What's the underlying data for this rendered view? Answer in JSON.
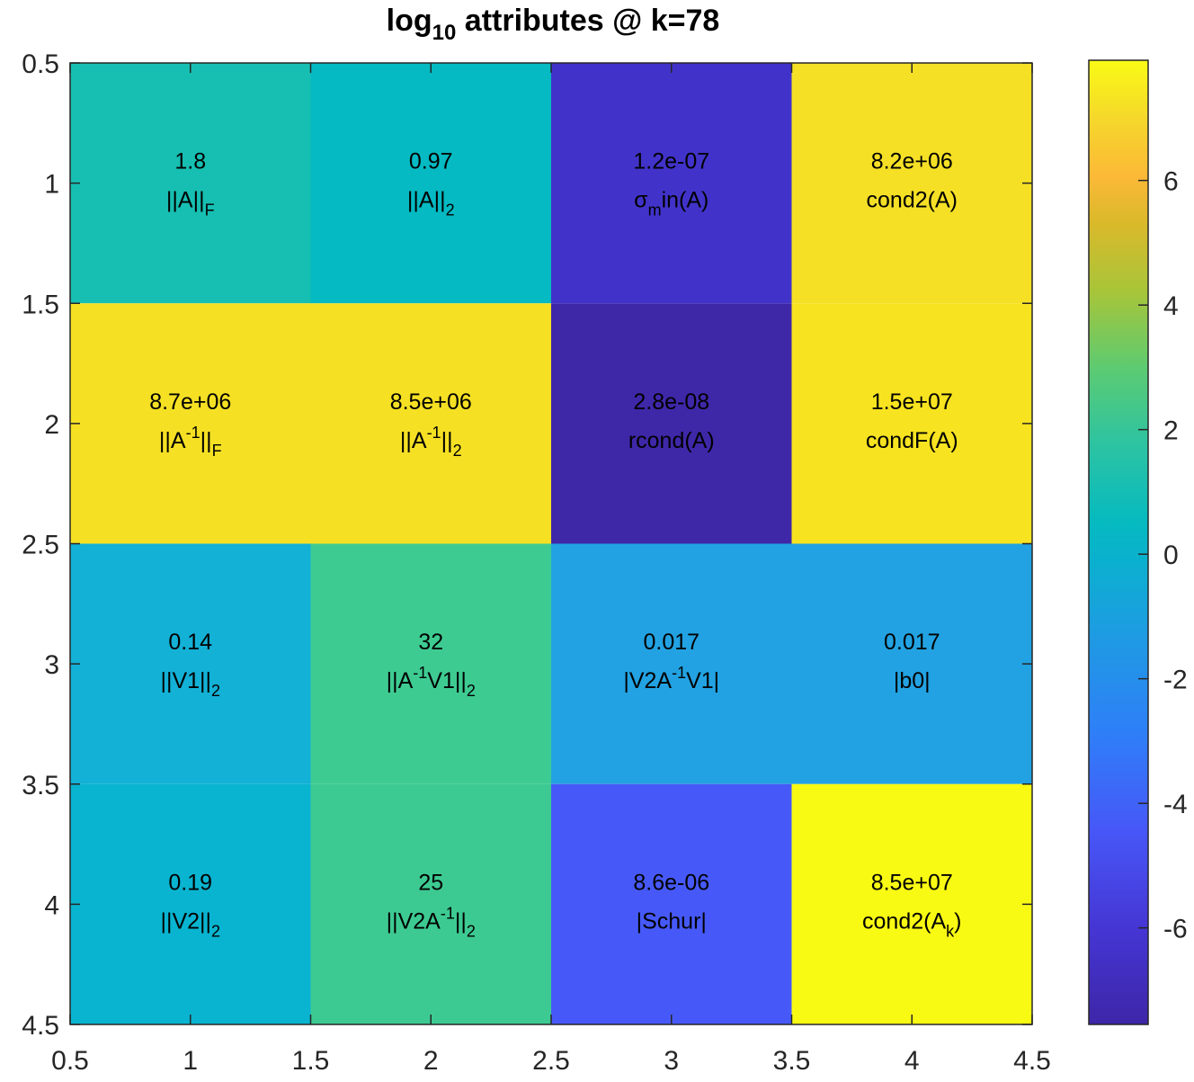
{
  "chart_data": {
    "type": "heatmap",
    "title": "log10 attributes @ k=78",
    "title_parts": {
      "main": "log",
      "sub": "10",
      "rest": " attributes @ k=78"
    },
    "xlabel": "",
    "ylabel": "",
    "xlim": [
      0.5,
      4.5
    ],
    "ylim": [
      0.5,
      4.5
    ],
    "y_reversed": true,
    "x_ticks": [
      "0.5",
      "1",
      "1.5",
      "2",
      "2.5",
      "3",
      "3.5",
      "4",
      "4.5"
    ],
    "y_ticks": [
      "0.5",
      "1",
      "1.5",
      "2",
      "2.5",
      "3",
      "3.5",
      "4",
      "4.5"
    ],
    "colorbar": {
      "ticks": [
        "6",
        "4",
        "2",
        "0",
        "-2",
        "-4",
        "-6"
      ],
      "clim": [
        -7.55,
        7.93
      ],
      "colormap": "parula"
    },
    "cells": [
      [
        {
          "value": 1.8,
          "log10": 0.26,
          "value_text": "1.8",
          "label": [
            {
              "t": "||A||"
            },
            {
              "t": "F",
              "sub": true
            }
          ]
        },
        {
          "value": 0.97,
          "log10": -0.01,
          "value_text": "0.97",
          "label": [
            {
              "t": "||A||"
            },
            {
              "t": "2",
              "sub": true
            }
          ]
        },
        {
          "value": 1.2e-07,
          "log10": -6.92,
          "value_text": "1.2e-07",
          "label": [
            {
              "t": "σ"
            },
            {
              "t": "m",
              "sub": true
            },
            {
              "t": "in(A)"
            }
          ]
        },
        {
          "value": 8200000.0,
          "log10": 6.91,
          "value_text": "8.2e+06",
          "label": [
            {
              "t": "cond2(A)"
            }
          ]
        }
      ],
      [
        {
          "value": 8700000.0,
          "log10": 6.94,
          "value_text": "8.7e+06",
          "label": [
            {
              "t": "||A"
            },
            {
              "t": "-1",
              "sup": true
            },
            {
              "t": "||"
            },
            {
              "t": "F",
              "sub": true
            }
          ]
        },
        {
          "value": 8500000.0,
          "log10": 6.93,
          "value_text": "8.5e+06",
          "label": [
            {
              "t": "||A"
            },
            {
              "t": "-1",
              "sup": true
            },
            {
              "t": "||"
            },
            {
              "t": "2",
              "sub": true
            }
          ]
        },
        {
          "value": 2.8e-08,
          "log10": -7.55,
          "value_text": "2.8e-08",
          "label": [
            {
              "t": "rcond(A)"
            }
          ]
        },
        {
          "value": 15000000.0,
          "log10": 7.18,
          "value_text": "1.5e+07",
          "label": [
            {
              "t": "condF(A)"
            }
          ]
        }
      ],
      [
        {
          "value": 0.14,
          "log10": -0.85,
          "value_text": "0.14",
          "label": [
            {
              "t": "||V1||"
            },
            {
              "t": "2",
              "sub": true
            }
          ]
        },
        {
          "value": 32,
          "log10": 1.51,
          "value_text": "32",
          "label": [
            {
              "t": "||A"
            },
            {
              "t": "-1",
              "sup": true
            },
            {
              "t": "V1||"
            },
            {
              "t": "2",
              "sub": true
            }
          ]
        },
        {
          "value": 0.017,
          "log10": -1.77,
          "value_text": "0.017",
          "label": [
            {
              "t": "|V2A"
            },
            {
              "t": "-1",
              "sup": true
            },
            {
              "t": "V1|"
            }
          ]
        },
        {
          "value": 0.017,
          "log10": -1.77,
          "value_text": "0.017",
          "label": [
            {
              "t": "|b0|"
            }
          ]
        }
      ],
      [
        {
          "value": 0.19,
          "log10": -0.72,
          "value_text": "0.19",
          "label": [
            {
              "t": "||V2||"
            },
            {
              "t": "2",
              "sub": true
            }
          ]
        },
        {
          "value": 25,
          "log10": 1.4,
          "value_text": "25",
          "label": [
            {
              "t": "||V2A"
            },
            {
              "t": "-1",
              "sup": true
            },
            {
              "t": "||"
            },
            {
              "t": "2",
              "sub": true
            }
          ]
        },
        {
          "value": 8.6e-06,
          "log10": -5.07,
          "value_text": "8.6e-06",
          "label": [
            {
              "t": "|Schur|"
            }
          ]
        },
        {
          "value": 85000000.0,
          "log10": 7.93,
          "value_text": "8.5e+07",
          "label": [
            {
              "t": "cond2(A"
            },
            {
              "t": "k",
              "sub": true
            },
            {
              "t": ")"
            }
          ]
        }
      ]
    ],
    "cell_colors": [
      [
        "#17bfb2",
        "#05bac2",
        "#4133c9",
        "#f5e026"
      ],
      [
        "#f5e024",
        "#f5e024",
        "#3e28a8",
        "#f7e320"
      ],
      [
        "#13b1d6",
        "#3ecb92",
        "#22a2e2",
        "#22a2e2"
      ],
      [
        "#09b4d0",
        "#3dca92",
        "#4659f8",
        "#f9fa14"
      ]
    ]
  }
}
